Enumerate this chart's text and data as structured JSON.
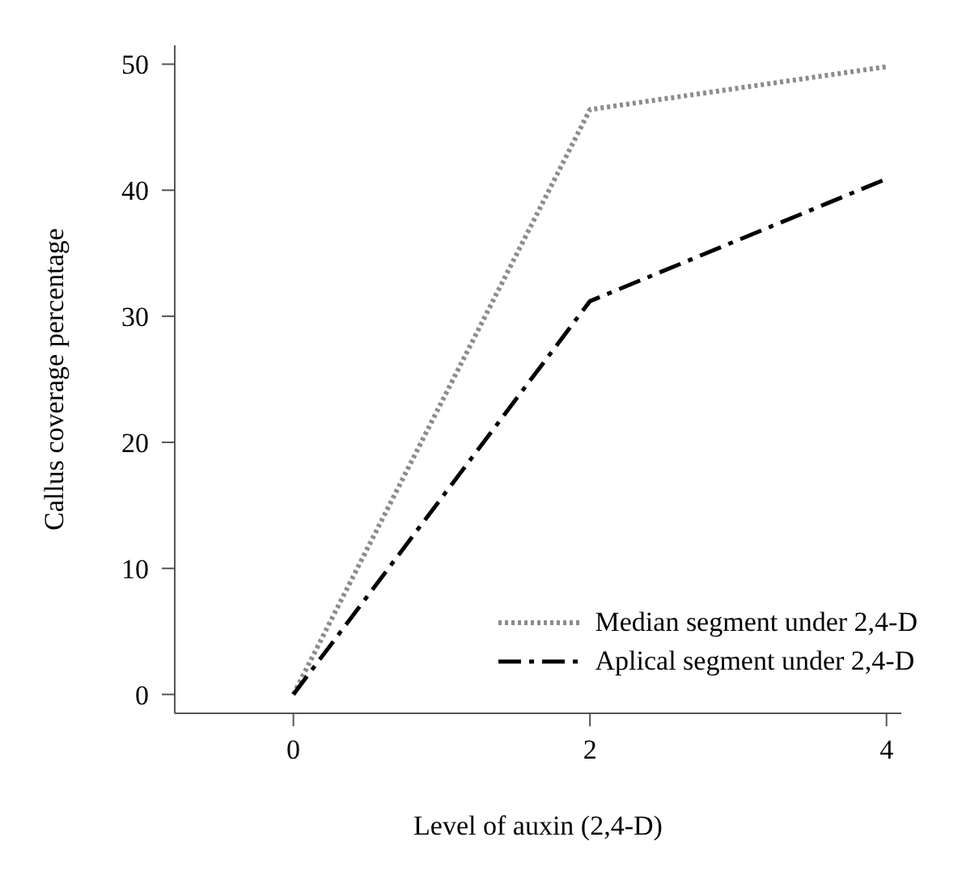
{
  "chart_data": {
    "type": "line",
    "xlabel": "Level of auxin (2,4-D)",
    "ylabel": "Callus coverage percentage",
    "x": [
      0,
      2,
      4
    ],
    "xlim": [
      -0.8,
      4.1
    ],
    "xticks": [
      0,
      2,
      4
    ],
    "ylim": [
      -1.5,
      51.5
    ],
    "yticks": [
      0,
      10,
      20,
      30,
      40,
      50
    ],
    "grid": false,
    "legend": "bottom right",
    "marker": "none",
    "series": [
      {
        "name": "Median segment under 2,4-D",
        "color": "#8c8c8c",
        "line_style": "dotted",
        "values": [
          0,
          46.4,
          49.8
        ]
      },
      {
        "name": "Aplical segment under 2,4-D",
        "color": "#000000",
        "line_style": "dashed",
        "values": [
          0,
          31.2,
          40.9
        ]
      }
    ]
  }
}
